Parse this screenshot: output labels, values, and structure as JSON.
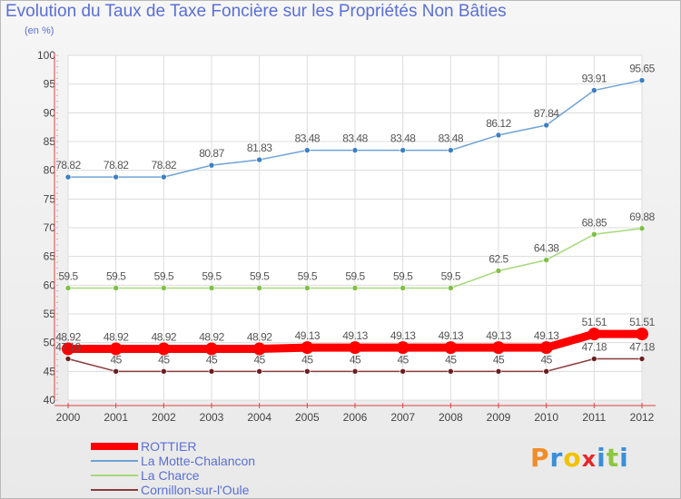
{
  "chart_data": {
    "type": "line",
    "title": "Evolution du Taux de Taxe Foncière sur les Propriétés Non Bâties",
    "subtitle": "(en %)",
    "x": [
      "2000",
      "2001",
      "2002",
      "2003",
      "2004",
      "2005",
      "2006",
      "2007",
      "2008",
      "2009",
      "2010",
      "2011",
      "2012"
    ],
    "ylim": [
      40,
      100
    ],
    "yticks": [
      "40",
      "45",
      "50",
      "55",
      "60",
      "65",
      "70",
      "75",
      "80",
      "85",
      "90",
      "95",
      "100"
    ],
    "grid": true,
    "series": [
      {
        "name": "La Motte-Chalancon",
        "color": "#6fa3d6",
        "marker": "#3b7fc4",
        "values": [
          78.82,
          78.82,
          78.82,
          80.87,
          81.83,
          83.48,
          83.48,
          83.48,
          83.48,
          86.12,
          87.84,
          93.91,
          95.65
        ],
        "labels": [
          "78.82",
          "78.82",
          "78.82",
          "80.87",
          "81.83",
          "83.48",
          "83.48",
          "83.48",
          "83.48",
          "86.12",
          "87.84",
          "93.91",
          "95.65"
        ]
      },
      {
        "name": "La Charce",
        "color": "#a6d97a",
        "marker": "#7cc142",
        "values": [
          59.5,
          59.5,
          59.5,
          59.5,
          59.5,
          59.5,
          59.5,
          59.5,
          59.5,
          62.5,
          64.38,
          68.85,
          69.88
        ],
        "labels": [
          "59.5",
          "59.5",
          "59.5",
          "59.5",
          "59.5",
          "59.5",
          "59.5",
          "59.5",
          "59.5",
          "62.5",
          "64.38",
          "68.85",
          "69.88"
        ]
      },
      {
        "name": "Cornillon-sur-l'Oule",
        "color": "#8b3a3a",
        "marker": "#6a1f1f",
        "values": [
          47.18,
          45,
          45,
          45,
          45,
          45,
          45,
          45,
          45,
          45,
          45,
          47.18,
          47.18
        ],
        "labels": [
          "47.18",
          "45",
          "45",
          "45",
          "45",
          "45",
          "45",
          "45",
          "45",
          "45",
          "45",
          "47.18",
          "47.18"
        ]
      },
      {
        "name": "ROTTIER",
        "color": "#ff0000",
        "marker": "#ff0000",
        "values": [
          48.92,
          48.92,
          48.92,
          48.92,
          48.92,
          49.13,
          49.13,
          49.13,
          49.13,
          49.13,
          49.13,
          51.51,
          51.51
        ],
        "labels": [
          "48.92",
          "48.92",
          "48.92",
          "48.92",
          "48.92",
          "49.13",
          "49.13",
          "49.13",
          "49.13",
          "49.13",
          "49.13",
          "51.51",
          "51.51"
        ]
      }
    ],
    "legend": {
      "placement": "bottom-left",
      "entries": [
        {
          "name": "ROTTIER",
          "color": "#ff0000"
        },
        {
          "name": "La Motte-Chalancon",
          "color": "#6fa3d6"
        },
        {
          "name": "La Charce",
          "color": "#a6d97a"
        },
        {
          "name": "Cornillon-sur-l'Oule",
          "color": "#8b3a3a"
        }
      ]
    }
  },
  "logo": {
    "letters": [
      "P",
      "r",
      "o",
      "x",
      "i",
      "t",
      "i"
    ],
    "colors": [
      "#f28c28",
      "#3a8fd8",
      "#f2c200",
      "#e8262b",
      "#3a8fd8",
      "#8cc63f",
      "#3a8fd8"
    ]
  }
}
